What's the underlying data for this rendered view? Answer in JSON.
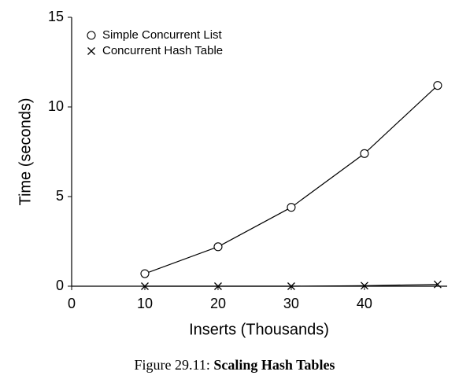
{
  "chart_data": {
    "type": "line",
    "figure_label": "Figure 29.11:",
    "title": "Scaling Hash Tables",
    "x_label": "Inserts (Thousands)",
    "y_label": "Time (seconds)",
    "x": [
      10,
      20,
      30,
      40,
      50
    ],
    "series": [
      {
        "name": "Simple Concurrent List",
        "color": "#000000",
        "marker": "circle",
        "values": [
          0.7,
          2.2,
          4.4,
          7.4,
          11.2
        ]
      },
      {
        "name": "Concurrent Hash Table",
        "color": "#000000",
        "marker": "x",
        "values": [
          0,
          0,
          0,
          0.03,
          0.1
        ]
      }
    ],
    "xlim": [
      0,
      51.3
    ],
    "xticks": [
      0,
      10,
      20,
      30,
      40
    ],
    "ylim": [
      0,
      15
    ],
    "yticks": [
      0,
      5,
      10,
      15
    ],
    "grid": false,
    "legend": "upper left"
  }
}
